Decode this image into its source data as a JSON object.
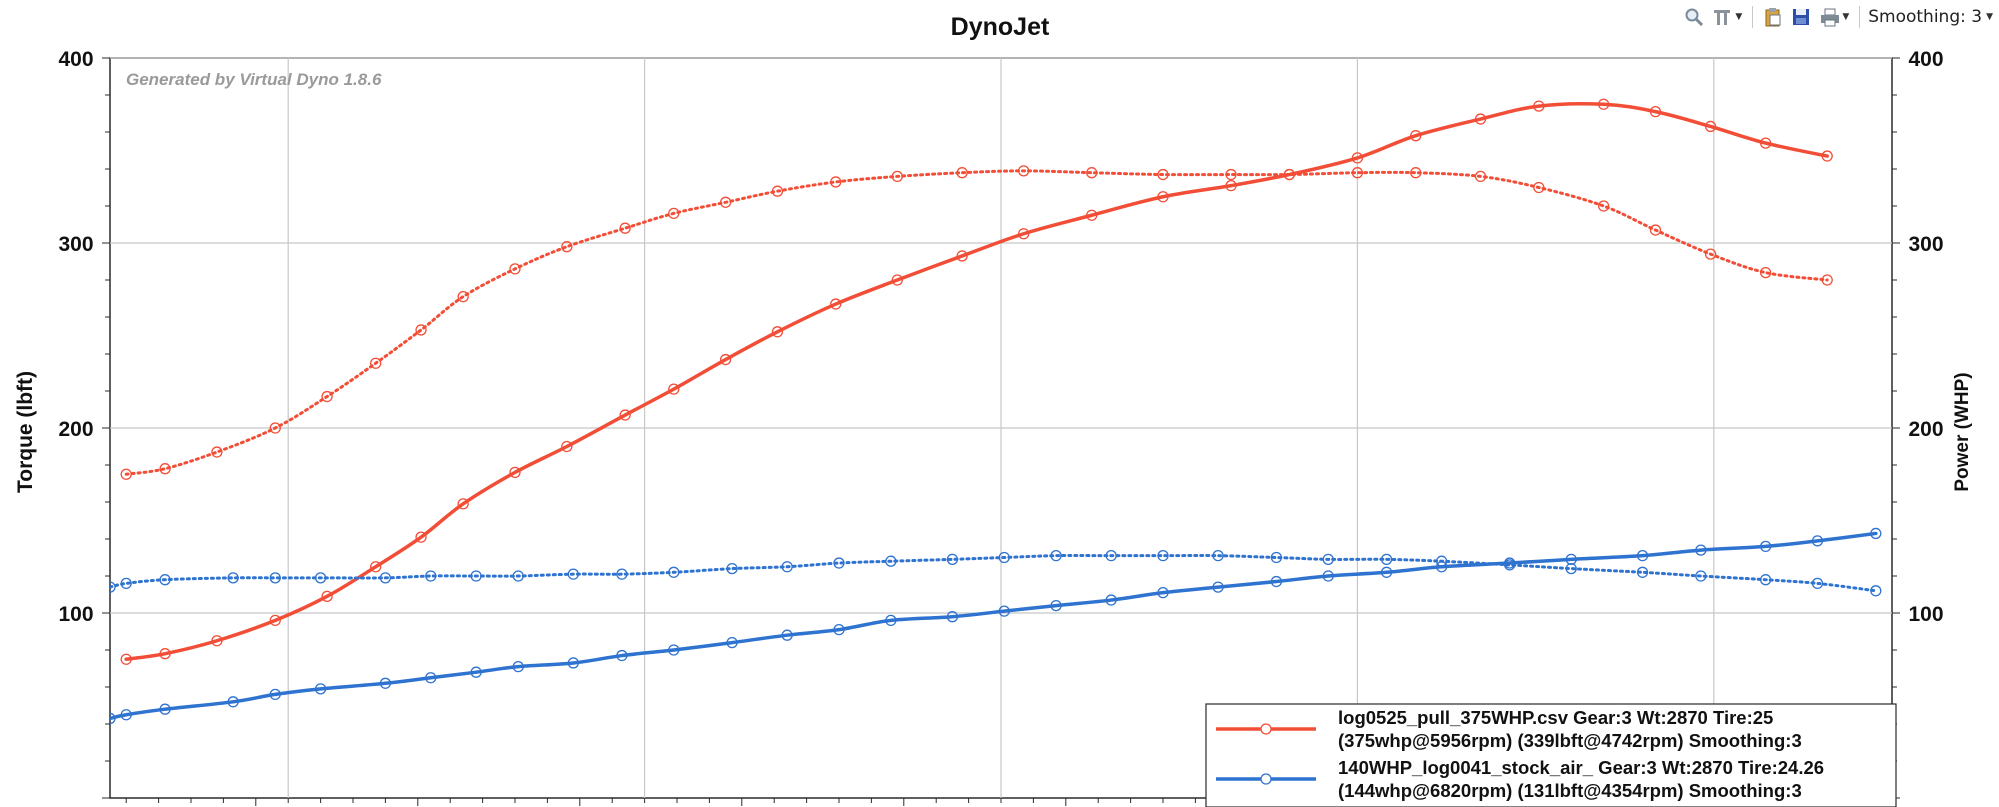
{
  "toolbar": {
    "icons": [
      "zoom-icon",
      "chart-settings-icon",
      "clipboard-icon",
      "save-icon",
      "print-icon"
    ],
    "smoothing_label": "Smoothing: 3"
  },
  "chart_data": {
    "type": "line",
    "title": "DynoJet",
    "watermark": "Generated by Virtual Dyno 1.8.6",
    "ylabel_left": "Torque (lbft)",
    "ylabel_right": "Power (WHP)",
    "ylim": [
      0,
      400
    ],
    "y_ticks": [
      100,
      200,
      300,
      400
    ],
    "xlim": [
      1550,
      7050
    ],
    "x_gridlines": [
      2100,
      3200,
      4300,
      5400,
      6500
    ],
    "grid": true,
    "legend_position": "bottom-right",
    "colors": {
      "red": "#f24e37",
      "blue": "#2f73d0",
      "grid": "#c8c8c8"
    },
    "series": [
      {
        "legend": "log0525_pull_375WHP.csv Gear:3 Wt:2870 Tire:25",
        "legend_line2": "(375whp@5956rpm) (339lbft@4742rpm) Smoothing:3",
        "color": "#f24e37",
        "power": {
          "x": [
            1600,
            1720,
            1880,
            2060,
            2220,
            2370,
            2510,
            2640,
            2800,
            2960,
            3140,
            3290,
            3450,
            3610,
            3790,
            3980,
            4180,
            4370,
            4580,
            4800,
            5010,
            5190,
            5400,
            5580,
            5780,
            5960,
            6160,
            6320,
            6490,
            6660,
            6850
          ],
          "y": [
            75,
            78,
            85,
            96,
            109,
            125,
            141,
            159,
            176,
            190,
            207,
            221,
            237,
            252,
            267,
            280,
            293,
            305,
            315,
            325,
            331,
            337,
            346,
            358,
            367,
            374,
            375,
            371,
            363,
            354,
            347
          ]
        },
        "torque": {
          "x": [
            1600,
            1720,
            1880,
            2060,
            2220,
            2370,
            2510,
            2640,
            2800,
            2960,
            3140,
            3290,
            3450,
            3610,
            3790,
            3980,
            4180,
            4370,
            4580,
            4800,
            5010,
            5190,
            5400,
            5580,
            5780,
            5960,
            6160,
            6320,
            6490,
            6660,
            6850
          ],
          "y": [
            175,
            178,
            187,
            200,
            217,
            235,
            253,
            271,
            286,
            298,
            308,
            316,
            322,
            328,
            333,
            336,
            338,
            339,
            338,
            337,
            337,
            337,
            338,
            338,
            336,
            330,
            320,
            307,
            294,
            284,
            280
          ]
        }
      },
      {
        "legend": "140WHP_log0041_stock_air_ Gear:3 Wt:2870 Tire:24.26",
        "legend_line2": "(144whp@6820rpm) (131lbft@4354rpm) Smoothing:3",
        "color": "#2f73d0",
        "power": {
          "x": [
            1550,
            1600,
            1720,
            1930,
            2060,
            2200,
            2400,
            2540,
            2680,
            2810,
            2980,
            3130,
            3290,
            3470,
            3640,
            3800,
            3960,
            4150,
            4310,
            4470,
            4640,
            4800,
            4970,
            5150,
            5310,
            5490,
            5660,
            5870,
            6060,
            6280,
            6460,
            6660,
            6820,
            7000
          ],
          "y": [
            43,
            45,
            48,
            52,
            56,
            59,
            62,
            65,
            68,
            71,
            73,
            77,
            80,
            84,
            88,
            91,
            96,
            98,
            101,
            104,
            107,
            111,
            114,
            117,
            120,
            122,
            125,
            127,
            129,
            131,
            134,
            136,
            139,
            143
          ]
        },
        "torque": {
          "x": [
            1550,
            1600,
            1720,
            1930,
            2060,
            2200,
            2400,
            2540,
            2680,
            2810,
            2980,
            3130,
            3290,
            3470,
            3640,
            3800,
            3960,
            4150,
            4310,
            4470,
            4640,
            4800,
            4970,
            5150,
            5310,
            5490,
            5660,
            5870,
            6060,
            6280,
            6460,
            6660,
            6820,
            7000
          ],
          "y": [
            114,
            116,
            118,
            119,
            119,
            119,
            119,
            120,
            120,
            120,
            121,
            121,
            122,
            124,
            125,
            127,
            128,
            129,
            130,
            131,
            131,
            131,
            131,
            130,
            129,
            129,
            128,
            126,
            124,
            122,
            120,
            118,
            116,
            112
          ]
        }
      }
    ]
  }
}
